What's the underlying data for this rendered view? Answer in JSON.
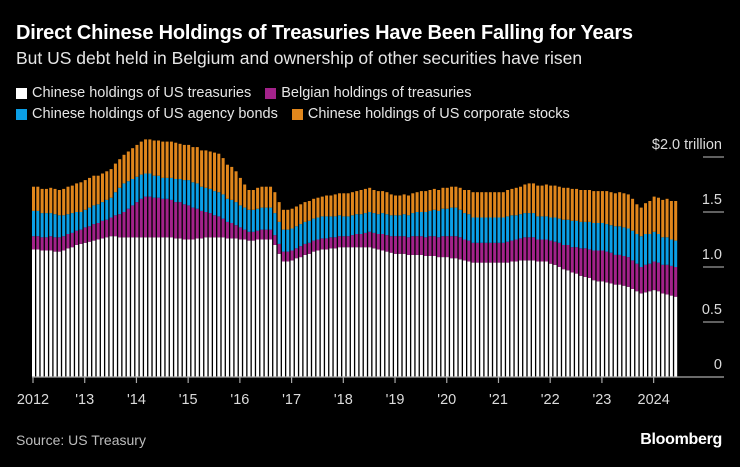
{
  "header": {
    "title": "Direct Chinese Holdings of Treasuries Have Been Falling for Years",
    "subtitle": "But US debt held in Belgium and ownership of other securities have risen"
  },
  "footer": {
    "source": "Source: US Treasury",
    "brand": "Bloomberg"
  },
  "chart_data": {
    "type": "bar",
    "stacked": true,
    "frequency": "monthly",
    "x_start": "2012-01",
    "x_end": "2024-06",
    "xtick_labels": [
      "2012",
      "'13",
      "'14",
      "'15",
      "'16",
      "'17",
      "'18",
      "'19",
      "'20",
      "'21",
      "'22",
      "'23",
      "2024"
    ],
    "ylim": [
      0,
      2.0
    ],
    "ytick_values": [
      0,
      0.5,
      1.0,
      1.5,
      2.0
    ],
    "ytick_labels": [
      "0",
      "0.5",
      "1.0",
      "1.5",
      "$2.0 trillion"
    ],
    "legend_placement": "top-left",
    "series": [
      {
        "name": "Chinese holdings of US treasuries",
        "color": "#ffffff",
        "values": [
          1.16,
          1.16,
          1.15,
          1.15,
          1.15,
          1.14,
          1.14,
          1.15,
          1.17,
          1.18,
          1.2,
          1.21,
          1.22,
          1.23,
          1.24,
          1.25,
          1.26,
          1.27,
          1.28,
          1.28,
          1.27,
          1.27,
          1.27,
          1.27,
          1.27,
          1.27,
          1.27,
          1.27,
          1.27,
          1.27,
          1.27,
          1.27,
          1.27,
          1.26,
          1.26,
          1.25,
          1.25,
          1.25,
          1.26,
          1.26,
          1.27,
          1.27,
          1.27,
          1.27,
          1.27,
          1.26,
          1.26,
          1.26,
          1.25,
          1.25,
          1.24,
          1.24,
          1.25,
          1.25,
          1.25,
          1.25,
          1.2,
          1.12,
          1.05,
          1.05,
          1.06,
          1.08,
          1.09,
          1.11,
          1.12,
          1.14,
          1.15,
          1.16,
          1.16,
          1.17,
          1.17,
          1.18,
          1.18,
          1.18,
          1.18,
          1.18,
          1.18,
          1.18,
          1.18,
          1.17,
          1.16,
          1.15,
          1.14,
          1.13,
          1.12,
          1.12,
          1.12,
          1.11,
          1.11,
          1.11,
          1.11,
          1.1,
          1.1,
          1.1,
          1.09,
          1.09,
          1.09,
          1.08,
          1.08,
          1.07,
          1.06,
          1.05,
          1.04,
          1.04,
          1.04,
          1.04,
          1.04,
          1.04,
          1.04,
          1.04,
          1.04,
          1.05,
          1.05,
          1.06,
          1.06,
          1.06,
          1.06,
          1.05,
          1.05,
          1.05,
          1.03,
          1.02,
          1.0,
          0.98,
          0.97,
          0.95,
          0.94,
          0.92,
          0.91,
          0.9,
          0.88,
          0.87,
          0.87,
          0.86,
          0.85,
          0.84,
          0.84,
          0.83,
          0.82,
          0.8,
          0.78,
          0.76,
          0.77,
          0.78,
          0.79,
          0.78,
          0.76,
          0.75,
          0.74,
          0.73
        ]
      },
      {
        "name": "Belgian holdings of treasuries",
        "color": "#a3228a",
        "values": [
          0.12,
          0.12,
          0.12,
          0.12,
          0.13,
          0.13,
          0.13,
          0.13,
          0.13,
          0.13,
          0.13,
          0.13,
          0.14,
          0.14,
          0.15,
          0.15,
          0.16,
          0.16,
          0.17,
          0.19,
          0.21,
          0.23,
          0.26,
          0.29,
          0.32,
          0.35,
          0.37,
          0.37,
          0.36,
          0.36,
          0.35,
          0.35,
          0.34,
          0.33,
          0.33,
          0.32,
          0.31,
          0.29,
          0.27,
          0.25,
          0.23,
          0.22,
          0.2,
          0.19,
          0.17,
          0.15,
          0.14,
          0.12,
          0.11,
          0.09,
          0.08,
          0.08,
          0.08,
          0.09,
          0.09,
          0.09,
          0.09,
          0.09,
          0.09,
          0.09,
          0.09,
          0.09,
          0.1,
          0.1,
          0.1,
          0.1,
          0.1,
          0.1,
          0.1,
          0.1,
          0.1,
          0.1,
          0.1,
          0.1,
          0.11,
          0.12,
          0.12,
          0.13,
          0.14,
          0.14,
          0.14,
          0.15,
          0.15,
          0.15,
          0.16,
          0.16,
          0.16,
          0.16,
          0.17,
          0.17,
          0.17,
          0.17,
          0.18,
          0.18,
          0.18,
          0.19,
          0.19,
          0.2,
          0.2,
          0.2,
          0.19,
          0.19,
          0.18,
          0.18,
          0.18,
          0.18,
          0.18,
          0.18,
          0.18,
          0.18,
          0.19,
          0.19,
          0.2,
          0.2,
          0.21,
          0.21,
          0.21,
          0.2,
          0.2,
          0.2,
          0.21,
          0.21,
          0.22,
          0.22,
          0.23,
          0.23,
          0.24,
          0.25,
          0.26,
          0.26,
          0.27,
          0.28,
          0.28,
          0.28,
          0.28,
          0.27,
          0.27,
          0.27,
          0.27,
          0.26,
          0.25,
          0.24,
          0.25,
          0.25,
          0.26,
          0.26,
          0.26,
          0.27,
          0.27,
          0.27
        ]
      },
      {
        "name": "Chinese holdings of US agency bonds",
        "color": "#0b9fe6",
        "values": [
          0.23,
          0.23,
          0.22,
          0.22,
          0.21,
          0.21,
          0.2,
          0.19,
          0.18,
          0.18,
          0.17,
          0.16,
          0.16,
          0.17,
          0.17,
          0.17,
          0.17,
          0.18,
          0.18,
          0.21,
          0.24,
          0.26,
          0.25,
          0.24,
          0.23,
          0.22,
          0.21,
          0.21,
          0.2,
          0.2,
          0.19,
          0.19,
          0.2,
          0.21,
          0.21,
          0.22,
          0.23,
          0.23,
          0.23,
          0.22,
          0.22,
          0.22,
          0.22,
          0.22,
          0.22,
          0.21,
          0.21,
          0.21,
          0.2,
          0.2,
          0.2,
          0.2,
          0.2,
          0.2,
          0.2,
          0.2,
          0.2,
          0.2,
          0.2,
          0.2,
          0.2,
          0.2,
          0.2,
          0.2,
          0.2,
          0.2,
          0.2,
          0.2,
          0.2,
          0.19,
          0.19,
          0.19,
          0.18,
          0.18,
          0.18,
          0.18,
          0.18,
          0.18,
          0.18,
          0.18,
          0.18,
          0.19,
          0.19,
          0.19,
          0.19,
          0.19,
          0.2,
          0.2,
          0.21,
          0.22,
          0.22,
          0.23,
          0.23,
          0.24,
          0.24,
          0.25,
          0.25,
          0.26,
          0.26,
          0.25,
          0.24,
          0.24,
          0.23,
          0.23,
          0.23,
          0.23,
          0.23,
          0.23,
          0.23,
          0.23,
          0.23,
          0.23,
          0.22,
          0.22,
          0.22,
          0.22,
          0.22,
          0.21,
          0.21,
          0.21,
          0.21,
          0.22,
          0.22,
          0.23,
          0.23,
          0.24,
          0.24,
          0.24,
          0.24,
          0.25,
          0.25,
          0.25,
          0.25,
          0.25,
          0.25,
          0.26,
          0.26,
          0.26,
          0.26,
          0.27,
          0.27,
          0.28,
          0.28,
          0.27,
          0.27,
          0.26,
          0.25,
          0.25,
          0.24,
          0.24
        ]
      },
      {
        "name": "Chinese holdings of US corporate stocks",
        "color": "#e0861c",
        "values": [
          0.22,
          0.22,
          0.22,
          0.22,
          0.23,
          0.23,
          0.23,
          0.24,
          0.25,
          0.25,
          0.26,
          0.27,
          0.27,
          0.27,
          0.27,
          0.26,
          0.26,
          0.26,
          0.26,
          0.26,
          0.26,
          0.26,
          0.27,
          0.28,
          0.29,
          0.3,
          0.31,
          0.31,
          0.32,
          0.32,
          0.33,
          0.33,
          0.33,
          0.33,
          0.32,
          0.32,
          0.32,
          0.32,
          0.33,
          0.33,
          0.34,
          0.34,
          0.35,
          0.35,
          0.33,
          0.31,
          0.3,
          0.28,
          0.25,
          0.21,
          0.18,
          0.18,
          0.19,
          0.19,
          0.19,
          0.19,
          0.19,
          0.18,
          0.18,
          0.18,
          0.18,
          0.18,
          0.18,
          0.18,
          0.18,
          0.18,
          0.18,
          0.18,
          0.19,
          0.19,
          0.2,
          0.2,
          0.21,
          0.21,
          0.21,
          0.21,
          0.22,
          0.22,
          0.22,
          0.21,
          0.21,
          0.2,
          0.2,
          0.19,
          0.18,
          0.18,
          0.18,
          0.18,
          0.18,
          0.18,
          0.19,
          0.19,
          0.19,
          0.19,
          0.19,
          0.19,
          0.19,
          0.19,
          0.19,
          0.2,
          0.21,
          0.22,
          0.23,
          0.23,
          0.23,
          0.23,
          0.23,
          0.23,
          0.23,
          0.23,
          0.24,
          0.24,
          0.25,
          0.25,
          0.26,
          0.27,
          0.27,
          0.28,
          0.28,
          0.29,
          0.29,
          0.29,
          0.29,
          0.29,
          0.29,
          0.29,
          0.29,
          0.29,
          0.29,
          0.29,
          0.29,
          0.29,
          0.29,
          0.3,
          0.3,
          0.3,
          0.31,
          0.31,
          0.31,
          0.29,
          0.27,
          0.26,
          0.28,
          0.3,
          0.32,
          0.33,
          0.34,
          0.35,
          0.35,
          0.36
        ]
      }
    ]
  }
}
